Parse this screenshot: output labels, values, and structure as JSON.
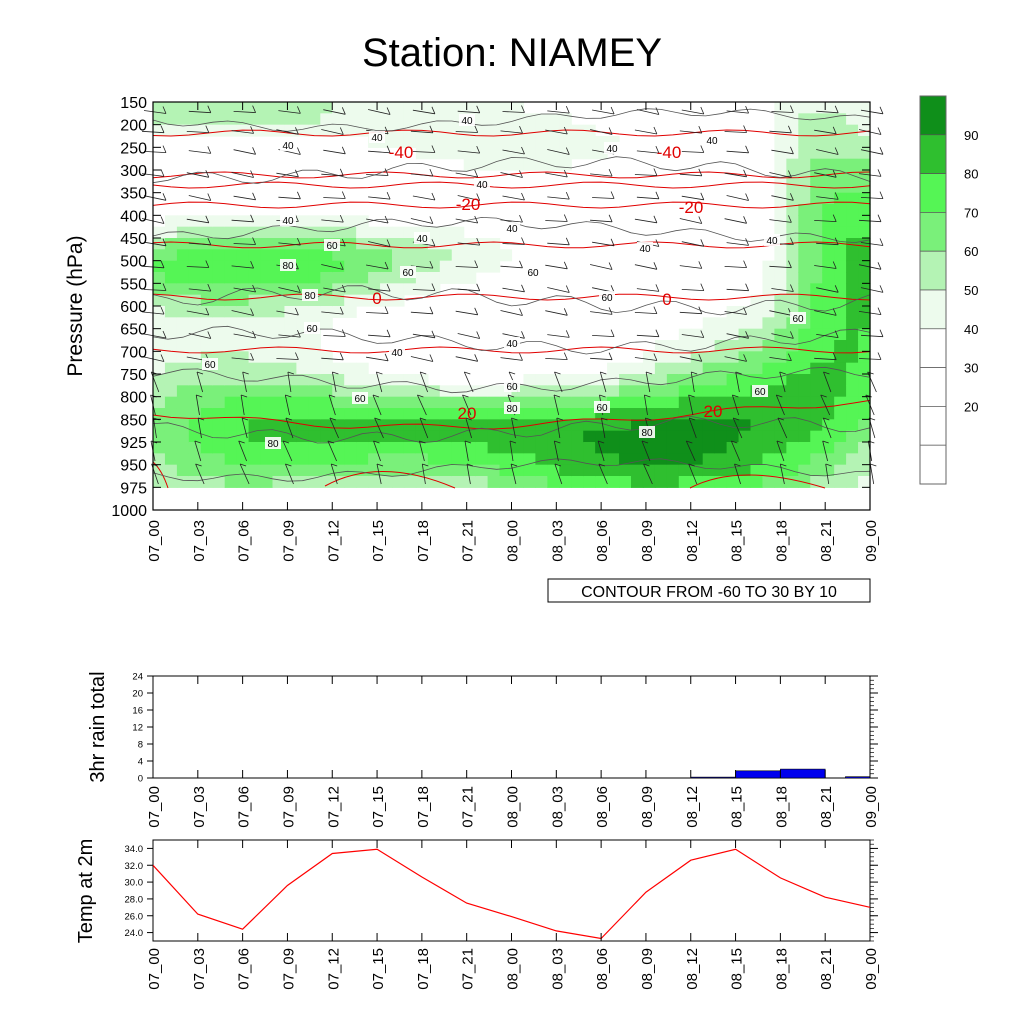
{
  "title": "Station: NIAMEY",
  "time_labels": [
    "07_00",
    "07_03",
    "07_06",
    "07_09",
    "07_12",
    "07_15",
    "07_18",
    "07_21",
    "08_00",
    "08_03",
    "08_06",
    "08_09",
    "08_12",
    "08_15",
    "08_18",
    "08_21",
    "09_00"
  ],
  "chart_data": [
    {
      "type": "heatmap",
      "name": "relative humidity cross-section",
      "ylabel": "Pressure (hPa)",
      "y_ticks": [
        150,
        200,
        250,
        300,
        350,
        400,
        450,
        500,
        550,
        600,
        650,
        700,
        750,
        800,
        850,
        925,
        950,
        975,
        1000
      ],
      "contour_note": "CONTOUR FROM -60 TO 30 BY 10",
      "colorbar": {
        "labels": [
          "90",
          "80",
          "70",
          "60",
          "50",
          "40",
          "30",
          "20"
        ],
        "colors": [
          "#0f8f1a",
          "#2fbf2f",
          "#55f555",
          "#7af07a",
          "#b4f3b4",
          "#edfbed",
          "#ffffff",
          "#ffffff",
          "#ffffff",
          "#ffffff"
        ]
      },
      "rh_contour_labels": [
        "40",
        "40",
        "40",
        "40",
        "40",
        "40",
        "40",
        "40",
        "40",
        "40",
        "40",
        "40",
        "40",
        "60",
        "60",
        "60",
        "60",
        "60",
        "60",
        "60",
        "60",
        "60",
        "60",
        "60",
        "80",
        "80",
        "80",
        "80",
        "80"
      ],
      "temp_contour_labels": [
        "-40",
        "-40",
        "-20",
        "-20",
        "0",
        "0",
        "20",
        "20"
      ]
    },
    {
      "type": "bar",
      "ylabel": "3hr rain total",
      "ylim": [
        0,
        24
      ],
      "y_ticks": [
        "0",
        "4",
        "8",
        "12",
        "16",
        "20",
        "24"
      ],
      "x": [
        "07_00",
        "07_03",
        "07_06",
        "07_09",
        "07_12",
        "07_15",
        "07_18",
        "07_21",
        "08_00",
        "08_03",
        "08_06",
        "08_09",
        "08_12",
        "08_15",
        "08_18",
        "08_21",
        "09_00"
      ],
      "values": [
        0,
        0,
        0,
        0,
        0,
        0,
        0,
        0,
        0,
        0,
        0,
        0,
        0,
        0.2,
        1.7,
        2.1,
        0.3
      ],
      "color": "#0000ee"
    },
    {
      "type": "line",
      "ylabel": "Temp at 2m",
      "ylim": [
        23,
        35
      ],
      "y_ticks": [
        "24.0",
        "26.0",
        "28.0",
        "30.0",
        "32.0",
        "34.0"
      ],
      "x": [
        "07_00",
        "07_03",
        "07_06",
        "07_09",
        "07_12",
        "07_15",
        "07_18",
        "07_21",
        "08_00",
        "08_03",
        "08_06",
        "08_09",
        "08_12",
        "08_15",
        "08_18",
        "08_21",
        "09_00"
      ],
      "values": [
        32.0,
        26.2,
        24.4,
        29.6,
        33.4,
        33.9,
        30.6,
        27.5,
        25.9,
        24.2,
        23.3,
        28.8,
        32.6,
        33.9,
        30.5,
        28.2,
        27.0
      ],
      "color": "#ff0000"
    }
  ]
}
